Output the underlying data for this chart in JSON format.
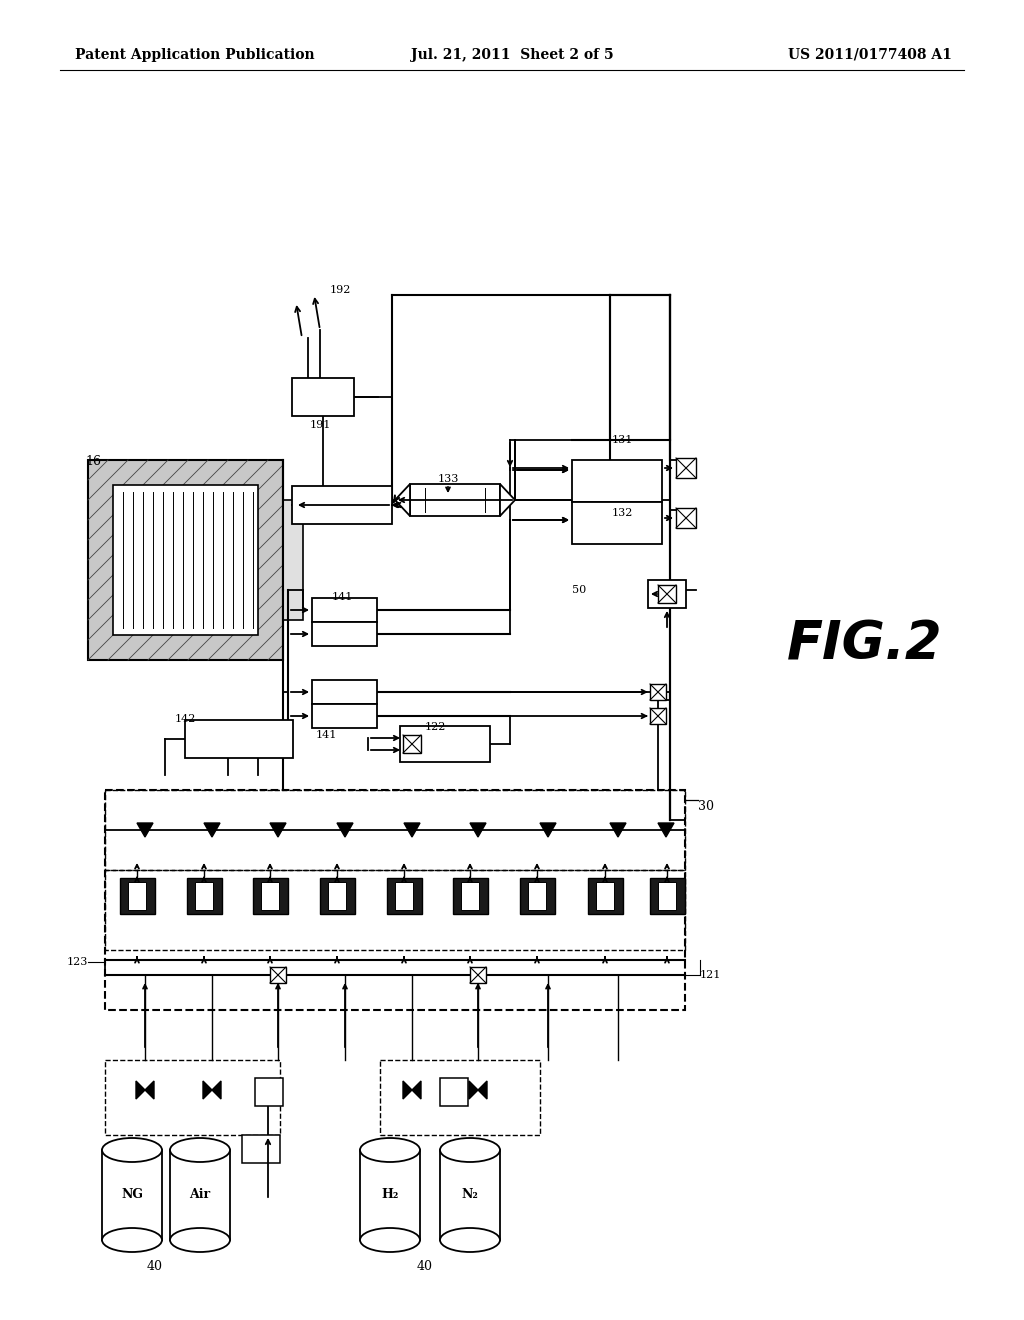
{
  "bg": "#ffffff",
  "header_left": "Patent Application Publication",
  "header_center": "Jul. 21, 2011  Sheet 2 of 5",
  "header_right": "US 2011/0177408 A1",
  "fig_label": "FIG.2"
}
